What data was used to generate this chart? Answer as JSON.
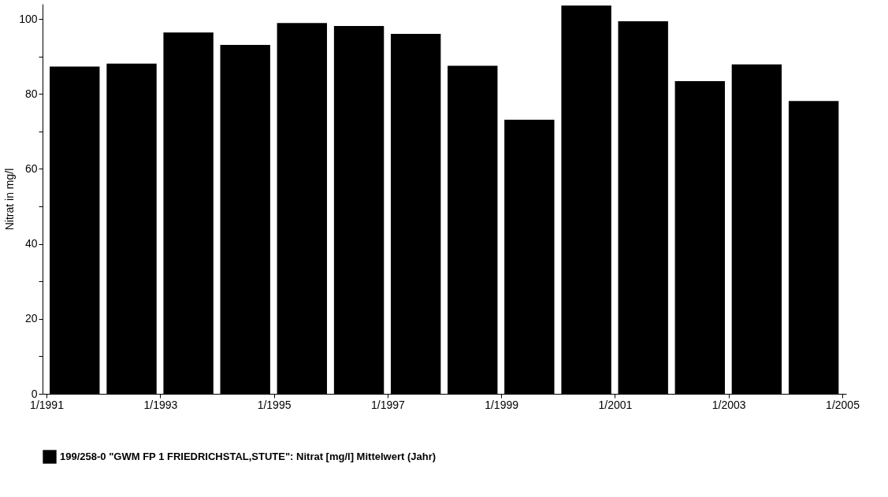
{
  "chart_data": {
    "type": "bar",
    "x": [
      "1991-07",
      "1992-07",
      "1993-07",
      "1994-07",
      "1995-07",
      "1996-07",
      "1997-07",
      "1998-07",
      "1999-07",
      "2000-07",
      "2001-07",
      "2002-07",
      "2003-07",
      "2004-07"
    ],
    "series": [
      {
        "name": "199/258-0 \"GWM FP 1 FRIEDRICHSTAL,STUTE\": Nitrat [mg/l] Mittelwert (Jahr)",
        "color": "#000000",
        "values": [
          87.3,
          88.1,
          96.4,
          93.1,
          98.9,
          98.1,
          96.0,
          87.5,
          73.1,
          103.6,
          99.4,
          83.4,
          87.9,
          78.1
        ]
      }
    ],
    "ylabel": "Nitrat in mg/l",
    "xlim": [
      "1991",
      "2005"
    ],
    "xticks": [
      {
        "value": "1991",
        "label": "1/1991"
      },
      {
        "value": "1993",
        "label": "1/1993"
      },
      {
        "value": "1995",
        "label": "1/1995"
      },
      {
        "value": "1997",
        "label": "1/1997"
      },
      {
        "value": "1999",
        "label": "1/1999"
      },
      {
        "value": "2001",
        "label": "1/2001"
      },
      {
        "value": "2003",
        "label": "1/2003"
      },
      {
        "value": "2005",
        "label": "1/2005"
      }
    ],
    "ylim": [
      0,
      104
    ],
    "yticks": [
      0,
      {
        "value": 10,
        "label": null
      },
      20,
      {
        "value": 30,
        "label": null
      },
      40,
      {
        "value": 50,
        "label": null
      },
      60,
      {
        "value": 70,
        "label": null
      },
      80,
      {
        "value": 90,
        "label": null
      },
      100
    ],
    "grid": false,
    "legend": "bottom"
  }
}
